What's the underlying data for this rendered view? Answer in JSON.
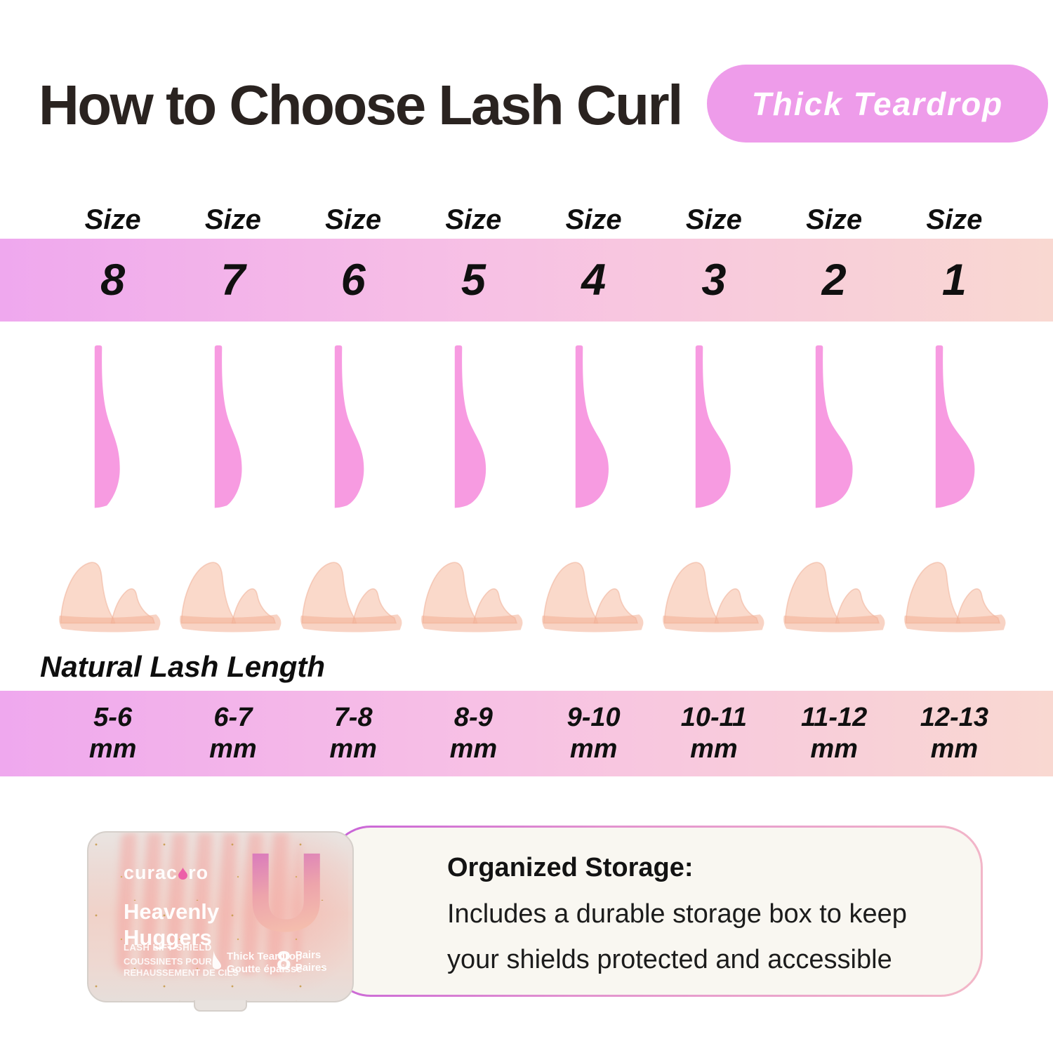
{
  "page": {
    "title": "How to Choose Lash Curl",
    "badge": "Thick Teardrop"
  },
  "size_chart": {
    "lash_length_heading": "Natural Lash Length",
    "columns": [
      {
        "size_label": "Size",
        "size": "8",
        "lash_length": "5-6",
        "unit": "mm"
      },
      {
        "size_label": "Size",
        "size": "7",
        "lash_length": "6-7",
        "unit": "mm"
      },
      {
        "size_label": "Size",
        "size": "6",
        "lash_length": "7-8",
        "unit": "mm"
      },
      {
        "size_label": "Size",
        "size": "5",
        "lash_length": "8-9",
        "unit": "mm"
      },
      {
        "size_label": "Size",
        "size": "4",
        "lash_length": "9-10",
        "unit": "mm"
      },
      {
        "size_label": "Size",
        "size": "3",
        "lash_length": "10-11",
        "unit": "mm"
      },
      {
        "size_label": "Size",
        "size": "2",
        "lash_length": "11-12",
        "unit": "mm"
      },
      {
        "size_label": "Size",
        "size": "1",
        "lash_length": "12-13",
        "unit": "mm"
      }
    ]
  },
  "storage_card": {
    "heading": "Organized Storage:",
    "body_line1": "Includes a durable storage box to keep",
    "body_line2": "your shields protected and accessible"
  },
  "product_box": {
    "brand_prefix": "curac",
    "brand_suffix": "ro",
    "name_line1": "Heavenly",
    "name_line2": "Huggers",
    "subtitle": "LASH LIFT SHIELD",
    "subtitle_fr_line1": "COUSSINETS POUR",
    "subtitle_fr_line2": "REHAUSSEMENT DE CILS",
    "style_en": "Thick Teardrop",
    "style_fr": "Goutte épaisse",
    "count": "8",
    "count_unit_en": "Pairs",
    "count_unit_fr": "Paires",
    "big_letter": "U"
  },
  "colors": {
    "title_text": "#2a2320",
    "badge_bg": "#ee9cea",
    "badge_text": "#ffffff",
    "band_start": "#efa8ee",
    "band_mid": "#f7c0e5",
    "band_end": "#f9d8d1",
    "curl_shape": "#f79be1",
    "shield_photo": "#f5bca4",
    "card_bg": "#f9f7f1",
    "card_border_start": "#c863d8",
    "card_border_end": "#f3b8c8",
    "brand_drop": "#ec5fa8",
    "big_letter_top": "#cf63c6",
    "big_letter_bottom": "#f7c7ae",
    "glitter": "#c89c4e",
    "body_text": "#1c1c1c"
  }
}
